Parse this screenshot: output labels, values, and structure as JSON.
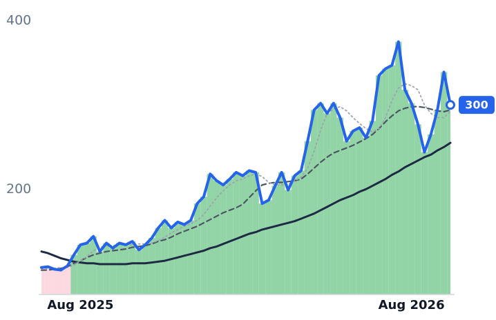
{
  "chart_data": {
    "type": "line",
    "categories": [
      null,
      null,
      null,
      null,
      null,
      null,
      "Aug 2025",
      null,
      null,
      null,
      null,
      null,
      null,
      null,
      null,
      null,
      null,
      null,
      null,
      null,
      null,
      null,
      null,
      null,
      null,
      null,
      null,
      null,
      null,
      null,
      null,
      null,
      null,
      null,
      null,
      null,
      null,
      null,
      null,
      null,
      null,
      null,
      null,
      null,
      null,
      null,
      null,
      null,
      null,
      null,
      null,
      null,
      null,
      null,
      null,
      null,
      null,
      "Aug 2026",
      null,
      null,
      null,
      null,
      null,
      null
    ],
    "series": [
      {
        "color": "#2563eb",
        "values": [
          107,
          108,
          105,
          104,
          109,
          122,
          134,
          136,
          144,
          126,
          136,
          130,
          136,
          134,
          138,
          128,
          134,
          142,
          154,
          163,
          154,
          161,
          158,
          163,
          183,
          191,
          218,
          210,
          205,
          212,
          220,
          216,
          222,
          220,
          183,
          187,
          204,
          220,
          199,
          216,
          222,
          257,
          294,
          302,
          290,
          302,
          285,
          257,
          269,
          273,
          261,
          281,
          335,
          343,
          347,
          375,
          318,
          302,
          277,
          244,
          265,
          294,
          339,
          300
        ]
      },
      {
        "color": "#9ca3af",
        "values": [
          106,
          106,
          106,
          107,
          107,
          110,
          115,
          120,
          127,
          131,
          133,
          133,
          134,
          134,
          134,
          135,
          135,
          136,
          139,
          143,
          148,
          152,
          156,
          159,
          163,
          170,
          180,
          190,
          198,
          205,
          210,
          212,
          216,
          218,
          215,
          208,
          205,
          205,
          206,
          210,
          214,
          225,
          245,
          270,
          290,
          295,
          298,
          293,
          285,
          278,
          272,
          268,
          272,
          285,
          305,
          320,
          325,
          323,
          318,
          300,
          290,
          285,
          285,
          292
        ]
      },
      {
        "color": "#4b5563",
        "values": [
          104,
          104,
          105,
          106,
          108,
          112,
          115,
          119,
          122,
          124,
          126,
          127,
          128,
          129,
          131,
          132,
          133,
          135,
          138,
          140,
          143,
          147,
          150,
          153,
          156,
          160,
          164,
          168,
          172,
          175,
          178,
          182,
          190,
          198,
          205,
          207,
          208,
          208,
          209,
          210,
          212,
          218,
          225,
          232,
          238,
          243,
          246,
          249,
          252,
          256,
          260,
          265,
          272,
          280,
          287,
          293,
          296,
          298,
          298,
          297,
          295,
          293,
          292,
          294
        ]
      },
      {
        "color": "#1e2a44",
        "values": [
          126,
          124,
          121,
          118,
          116,
          114,
          113,
          112,
          112,
          111,
          111,
          111,
          111,
          111,
          112,
          112,
          112,
          113,
          114,
          115,
          117,
          119,
          121,
          123,
          125,
          127,
          130,
          132,
          135,
          138,
          141,
          144,
          147,
          149,
          152,
          154,
          156,
          158,
          160,
          162,
          165,
          168,
          171,
          175,
          179,
          183,
          187,
          190,
          193,
          197,
          200,
          204,
          208,
          212,
          217,
          221,
          226,
          230,
          234,
          238,
          241,
          246,
          250,
          255
        ]
      }
    ],
    "ylim": [
      75,
      400
    ],
    "yticks": [
      200,
      400
    ],
    "grid": false
  }
}
